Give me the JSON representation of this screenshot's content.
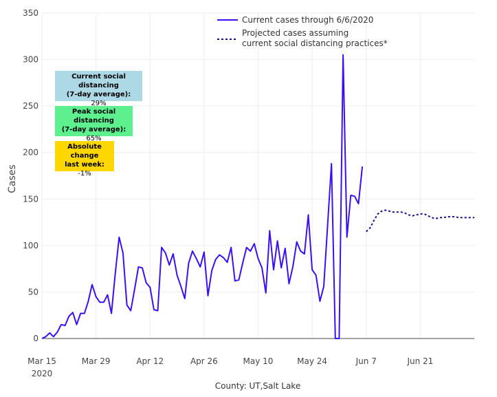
{
  "chart_data": {
    "type": "line",
    "title": "",
    "xlabel": "",
    "ylabel": "Cases",
    "footer": "County: UT,Salt Lake",
    "ylim": [
      0,
      350
    ],
    "yticks": [
      0,
      50,
      100,
      150,
      200,
      250,
      300,
      350
    ],
    "xlim": [
      "2020-03-15",
      "2020-07-05"
    ],
    "xticks": [
      {
        "date": "2020-03-15",
        "label": "Mar 15",
        "sublabel": "2020"
      },
      {
        "date": "2020-03-29",
        "label": "Mar 29"
      },
      {
        "date": "2020-04-12",
        "label": "Apr 12"
      },
      {
        "date": "2020-04-26",
        "label": "Apr 26"
      },
      {
        "date": "2020-05-10",
        "label": "May 10"
      },
      {
        "date": "2020-05-24",
        "label": "May 24"
      },
      {
        "date": "2020-06-07",
        "label": "Jun 7"
      },
      {
        "date": "2020-06-21",
        "label": "Jun 21"
      }
    ],
    "grid": true,
    "legend_position": "top-right",
    "series": [
      {
        "name": "Current cases through 6/6/2020",
        "style": "solid",
        "color": "#3a0ff5",
        "points": [
          [
            "2020-03-15",
            0
          ],
          [
            "2020-03-16",
            2
          ],
          [
            "2020-03-17",
            6
          ],
          [
            "2020-03-18",
            2
          ],
          [
            "2020-03-19",
            7
          ],
          [
            "2020-03-20",
            15
          ],
          [
            "2020-03-21",
            14
          ],
          [
            "2020-03-22",
            24
          ],
          [
            "2020-03-23",
            28
          ],
          [
            "2020-03-24",
            15
          ],
          [
            "2020-03-25",
            27
          ],
          [
            "2020-03-26",
            27
          ],
          [
            "2020-03-27",
            40
          ],
          [
            "2020-03-28",
            58
          ],
          [
            "2020-03-29",
            45
          ],
          [
            "2020-03-30",
            39
          ],
          [
            "2020-03-31",
            39
          ],
          [
            "2020-04-01",
            47
          ],
          [
            "2020-04-02",
            27
          ],
          [
            "2020-04-03",
            70
          ],
          [
            "2020-04-04",
            109
          ],
          [
            "2020-04-05",
            92
          ],
          [
            "2020-04-06",
            36
          ],
          [
            "2020-04-07",
            30
          ],
          [
            "2020-04-08",
            53
          ],
          [
            "2020-04-09",
            77
          ],
          [
            "2020-04-10",
            76
          ],
          [
            "2020-04-11",
            60
          ],
          [
            "2020-04-12",
            55
          ],
          [
            "2020-04-13",
            31
          ],
          [
            "2020-04-14",
            30
          ],
          [
            "2020-04-15",
            98
          ],
          [
            "2020-04-16",
            92
          ],
          [
            "2020-04-17",
            79
          ],
          [
            "2020-04-18",
            91
          ],
          [
            "2020-04-19",
            68
          ],
          [
            "2020-04-20",
            56
          ],
          [
            "2020-04-21",
            43
          ],
          [
            "2020-04-22",
            81
          ],
          [
            "2020-04-23",
            94
          ],
          [
            "2020-04-24",
            86
          ],
          [
            "2020-04-25",
            77
          ],
          [
            "2020-04-26",
            93
          ],
          [
            "2020-04-27",
            46
          ],
          [
            "2020-04-28",
            73
          ],
          [
            "2020-04-29",
            85
          ],
          [
            "2020-04-30",
            90
          ],
          [
            "2020-05-01",
            87
          ],
          [
            "2020-05-02",
            82
          ],
          [
            "2020-05-03",
            98
          ],
          [
            "2020-05-04",
            62
          ],
          [
            "2020-05-05",
            63
          ],
          [
            "2020-05-06",
            81
          ],
          [
            "2020-05-07",
            98
          ],
          [
            "2020-05-08",
            94
          ],
          [
            "2020-05-09",
            102
          ],
          [
            "2020-05-10",
            86
          ],
          [
            "2020-05-11",
            76
          ],
          [
            "2020-05-12",
            49
          ],
          [
            "2020-05-13",
            116
          ],
          [
            "2020-05-14",
            74
          ],
          [
            "2020-05-15",
            105
          ],
          [
            "2020-05-16",
            76
          ],
          [
            "2020-05-17",
            97
          ],
          [
            "2020-05-18",
            59
          ],
          [
            "2020-05-19",
            77
          ],
          [
            "2020-05-20",
            104
          ],
          [
            "2020-05-21",
            94
          ],
          [
            "2020-05-22",
            91
          ],
          [
            "2020-05-23",
            133
          ],
          [
            "2020-05-24",
            74
          ],
          [
            "2020-05-25",
            68
          ],
          [
            "2020-05-26",
            40
          ],
          [
            "2020-05-27",
            56
          ],
          [
            "2020-05-28",
            122
          ],
          [
            "2020-05-29",
            188
          ],
          [
            "2020-05-30",
            0
          ],
          [
            "2020-05-31",
            0
          ],
          [
            "2020-06-01",
            305
          ],
          [
            "2020-06-02",
            109
          ],
          [
            "2020-06-03",
            154
          ],
          [
            "2020-06-04",
            153
          ],
          [
            "2020-06-05",
            145
          ],
          [
            "2020-06-06",
            185
          ]
        ]
      },
      {
        "name": "Projected cases assuming current social distancing practices*",
        "legend_lines": [
          "Projected cases assuming",
          "current social distancing practices*"
        ],
        "style": "dotted",
        "color": "#1a0a8c",
        "points": [
          [
            "2020-06-07",
            115
          ],
          [
            "2020-06-08",
            119
          ],
          [
            "2020-06-09",
            127
          ],
          [
            "2020-06-10",
            134
          ],
          [
            "2020-06-11",
            137
          ],
          [
            "2020-06-12",
            138
          ],
          [
            "2020-06-13",
            137
          ],
          [
            "2020-06-14",
            136
          ],
          [
            "2020-06-15",
            136
          ],
          [
            "2020-06-16",
            136
          ],
          [
            "2020-06-17",
            135
          ],
          [
            "2020-06-18",
            133
          ],
          [
            "2020-06-19",
            132
          ],
          [
            "2020-06-20",
            133
          ],
          [
            "2020-06-21",
            134
          ],
          [
            "2020-06-22",
            134
          ],
          [
            "2020-06-23",
            132
          ],
          [
            "2020-06-24",
            130
          ],
          [
            "2020-06-25",
            129
          ],
          [
            "2020-06-26",
            130
          ],
          [
            "2020-06-27",
            130
          ],
          [
            "2020-06-28",
            131
          ],
          [
            "2020-06-29",
            131
          ],
          [
            "2020-06-30",
            131
          ],
          [
            "2020-07-01",
            130
          ],
          [
            "2020-07-02",
            130
          ],
          [
            "2020-07-03",
            130
          ],
          [
            "2020-07-04",
            130
          ],
          [
            "2020-07-05",
            130
          ]
        ]
      }
    ],
    "annotations": [
      {
        "id": "current",
        "lines": [
          "Current social distancing",
          "(7-day average):"
        ],
        "value": "29%",
        "bg": "#add8e6"
      },
      {
        "id": "peak",
        "lines": [
          "Peak social distancing",
          "(7-day average):"
        ],
        "value": "65%",
        "bg": "#5ef08e"
      },
      {
        "id": "change",
        "lines": [
          "Absolute change",
          "last week:"
        ],
        "value": "-1%",
        "bg": "#ffd700"
      }
    ]
  }
}
